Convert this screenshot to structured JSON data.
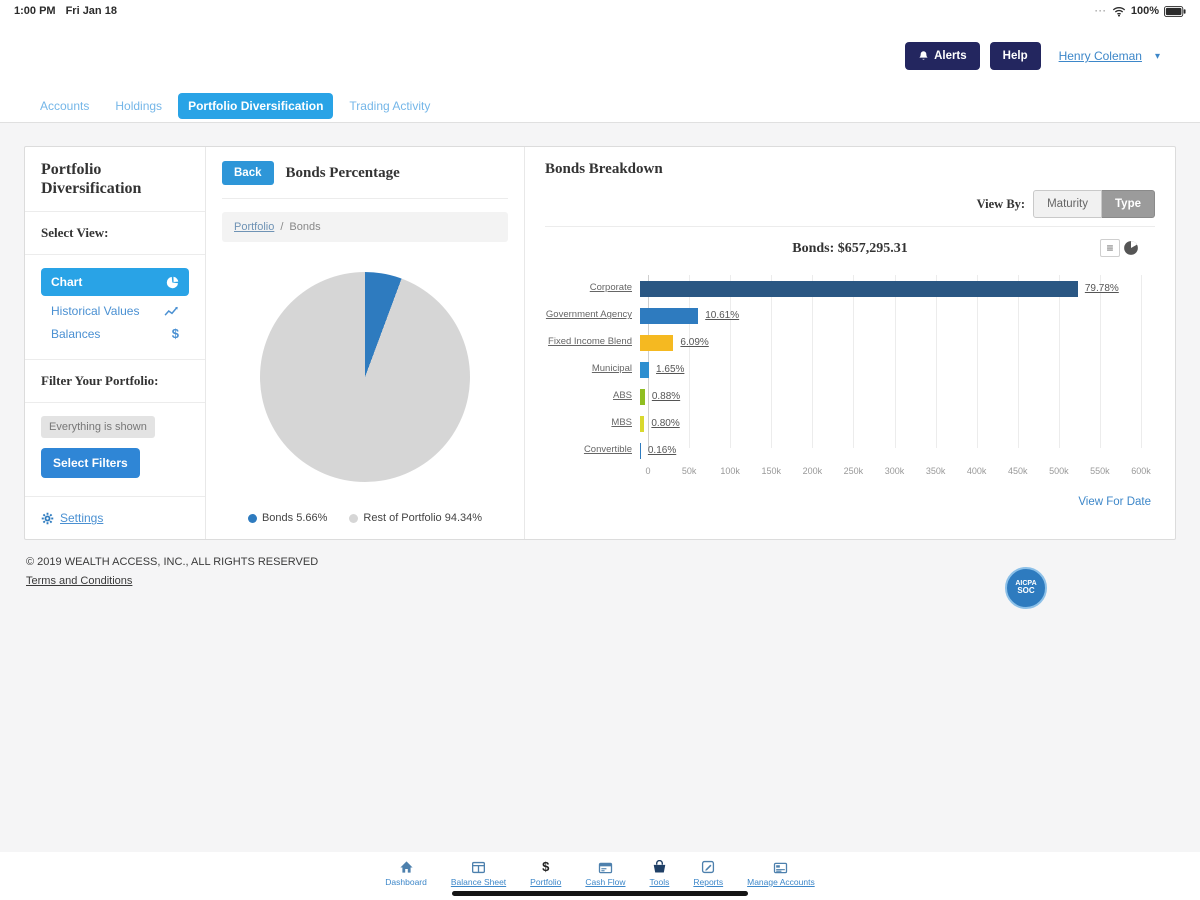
{
  "status_bar": {
    "time": "1:00 PM",
    "date": "Fri Jan 18",
    "cellular_dots": "···",
    "battery_label": "100%"
  },
  "header": {
    "alerts_label": "Alerts",
    "help_label": "Help",
    "user_menu": "Henry Coleman",
    "caret": "▾"
  },
  "nav_tabs": {
    "items": [
      {
        "label": "Accounts",
        "active": false
      },
      {
        "label": "Holdings",
        "active": false
      },
      {
        "label": "Portfolio Diversification",
        "active": true
      },
      {
        "label": "Trading Activity",
        "active": false
      }
    ]
  },
  "sidebar": {
    "title": "Portfolio Diversification",
    "select_view_label": "Select View:",
    "views": [
      {
        "label": "Chart",
        "icon": "pie-chart-icon",
        "active": true
      },
      {
        "label": "Historical Values",
        "icon": "line-chart-icon",
        "active": false
      },
      {
        "label": "Balances",
        "icon": "dollar-icon",
        "active": false
      }
    ],
    "filter_label": "Filter Your Portfolio:",
    "filter_status": "Everything is shown",
    "select_filters_label": "Select Filters",
    "settings_label": "Settings"
  },
  "bonds_percentage_panel": {
    "back_label": "Back",
    "title": "Bonds Percentage",
    "breadcrumb": {
      "link": "Portfolio",
      "separator": "/",
      "current": "Bonds"
    },
    "legend": [
      {
        "label": "Bonds 5.66%",
        "color": "#2e7bbf"
      },
      {
        "label": "Rest of Portfolio 94.34%",
        "color": "#d6d6d6"
      }
    ]
  },
  "bonds_breakdown_panel": {
    "title": "Bonds Breakdown",
    "view_by_label": "View By:",
    "view_by_options": [
      {
        "label": "Maturity",
        "selected": false
      },
      {
        "label": "Type",
        "selected": true
      }
    ],
    "chart_title": "Bonds: $657,295.31",
    "menu_icon_glyph": "≡",
    "view_for_date_label": "View For Date"
  },
  "chart_data": [
    {
      "type": "pie",
      "title": "Bonds Percentage",
      "slices": [
        {
          "label": "Bonds",
          "value": 5.66,
          "color": "#2e7bbf"
        },
        {
          "label": "Rest of Portfolio",
          "value": 94.34,
          "color": "#d6d6d6"
        }
      ]
    },
    {
      "type": "bar",
      "orientation": "horizontal",
      "title": "Bonds: $657,295.31",
      "total_value": 657295.31,
      "axis_max": 600000,
      "ticks": [
        "0",
        "50k",
        "100k",
        "150k",
        "200k",
        "250k",
        "300k",
        "350k",
        "400k",
        "450k",
        "500k",
        "550k",
        "600k"
      ],
      "categories": [
        "Corporate",
        "Government Agency",
        "Fixed Income Blend",
        "Municipal",
        "ABS",
        "MBS",
        "Convertible"
      ],
      "values": [
        524390,
        69739,
        40029,
        10845,
        5784,
        5258,
        1052
      ],
      "pct_labels": [
        "79.78%",
        "10.61%",
        "6.09%",
        "1.65%",
        "0.88%",
        "0.80%",
        "0.16%"
      ],
      "colors": [
        "#2a5783",
        "#2e7bbf",
        "#f5b921",
        "#2e8fd0",
        "#8fbe21",
        "#d9d92e",
        "#2e7bbf"
      ],
      "grid": true,
      "legend_position": "none"
    }
  ],
  "footer": {
    "copyright": "© 2019 WEALTH ACCESS, INC., ALL RIGHTS RESERVED",
    "terms_label": "Terms and Conditions",
    "badge": {
      "line1": "AICPA",
      "line2": "SOC"
    }
  },
  "bottom_nav": {
    "items": [
      {
        "label": "Dashboard",
        "icon": "home-icon"
      },
      {
        "label": "Balance Sheet",
        "icon": "balance-sheet-icon"
      },
      {
        "label": "Portfolio",
        "icon": "dollar-icon"
      },
      {
        "label": "Cash Flow",
        "icon": "cash-flow-icon"
      },
      {
        "label": "Tools",
        "icon": "tools-icon"
      },
      {
        "label": "Reports",
        "icon": "reports-icon"
      },
      {
        "label": "Manage Accounts",
        "icon": "manage-accounts-icon"
      }
    ]
  }
}
